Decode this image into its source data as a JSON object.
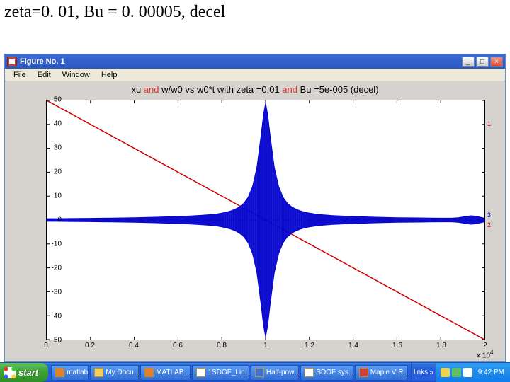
{
  "slide": {
    "caption": "zeta=0. 01, Bu = 0. 00005, decel"
  },
  "figureWindow": {
    "title": "Figure No. 1",
    "menus": [
      "File",
      "Edit",
      "Window",
      "Help"
    ],
    "winButtons": {
      "min": "_",
      "max": "□",
      "close": "×"
    }
  },
  "chart": {
    "type": "line",
    "title_prefix": "xu ",
    "title_mid1": "and",
    "title_mid2": " w/w0 vs w0*t with zeta =0.01 ",
    "title_mid3": "and",
    "title_end": " Bu =5e-005 (decel)",
    "title_fontsize": 13,
    "background_color": "#ffffff",
    "panel_color": "#d6d3ce",
    "axis_color": "#000000",
    "xlim": [
      0,
      2.0
    ],
    "ylim": [
      -50,
      50
    ],
    "xticks": [
      0,
      0.2,
      0.4,
      0.6,
      0.8,
      1.0,
      1.2,
      1.4,
      1.6,
      1.8,
      2.0
    ],
    "yticks": [
      -50,
      -40,
      -30,
      -20,
      -10,
      0,
      10,
      20,
      30,
      40,
      50
    ],
    "x_exponent_label": "x 10",
    "x_exponent_sup": "4",
    "series": [
      {
        "name": "line1",
        "label": "1",
        "color": "#d00000",
        "linewidth": 1.5,
        "style": "solid",
        "points": [
          [
            0,
            50
          ],
          [
            2.0,
            -50
          ]
        ]
      },
      {
        "name": "line2",
        "label": "2",
        "color": "#d00000",
        "linewidth": 1,
        "style": "dashed",
        "points": [
          [
            0,
            0
          ],
          [
            2.0,
            0
          ]
        ]
      },
      {
        "name": "line3",
        "label": "3",
        "color": "#0000cc",
        "linewidth": 1,
        "style": "solid",
        "envelope": [
          [
            0.0,
            0.6
          ],
          [
            0.05,
            0.6
          ],
          [
            0.1,
            0.65
          ],
          [
            0.15,
            0.7
          ],
          [
            0.2,
            0.75
          ],
          [
            0.25,
            0.8
          ],
          [
            0.3,
            0.85
          ],
          [
            0.35,
            0.9
          ],
          [
            0.4,
            1.0
          ],
          [
            0.45,
            1.1
          ],
          [
            0.5,
            1.2
          ],
          [
            0.55,
            1.35
          ],
          [
            0.6,
            1.5
          ],
          [
            0.65,
            1.7
          ],
          [
            0.7,
            1.95
          ],
          [
            0.75,
            2.3
          ],
          [
            0.78,
            2.6
          ],
          [
            0.8,
            2.9
          ],
          [
            0.82,
            3.3
          ],
          [
            0.84,
            3.8
          ],
          [
            0.86,
            4.5
          ],
          [
            0.88,
            5.5
          ],
          [
            0.9,
            7.0
          ],
          [
            0.92,
            9.5
          ],
          [
            0.94,
            14.0
          ],
          [
            0.96,
            22.0
          ],
          [
            0.98,
            36.0
          ],
          [
            0.99,
            44.0
          ],
          [
            1.0,
            49.0
          ],
          [
            1.01,
            44.0
          ],
          [
            1.02,
            36.0
          ],
          [
            1.04,
            22.0
          ],
          [
            1.06,
            14.0
          ],
          [
            1.08,
            9.5
          ],
          [
            1.1,
            7.0
          ],
          [
            1.12,
            5.5
          ],
          [
            1.14,
            4.5
          ],
          [
            1.16,
            3.8
          ],
          [
            1.18,
            3.3
          ],
          [
            1.2,
            2.9
          ],
          [
            1.23,
            2.5
          ],
          [
            1.26,
            2.2
          ],
          [
            1.3,
            1.9
          ],
          [
            1.35,
            1.7
          ],
          [
            1.4,
            1.5
          ],
          [
            1.45,
            1.35
          ],
          [
            1.5,
            1.2
          ],
          [
            1.55,
            1.1
          ],
          [
            1.6,
            1.0
          ],
          [
            1.65,
            0.95
          ],
          [
            1.7,
            0.9
          ],
          [
            1.75,
            0.85
          ],
          [
            1.8,
            0.82
          ],
          [
            1.85,
            0.8
          ],
          [
            1.88,
            1.0
          ],
          [
            1.9,
            1.3
          ],
          [
            1.92,
            1.6
          ],
          [
            1.94,
            1.8
          ],
          [
            1.96,
            1.6
          ],
          [
            1.98,
            1.2
          ],
          [
            2.0,
            0.8
          ]
        ]
      }
    ],
    "series_label_positions": {
      "1": {
        "x": 2.01,
        "y": 40,
        "color": "#d00000"
      },
      "2": {
        "x": 2.01,
        "y": -2,
        "color": "#d00000"
      },
      "3": {
        "x": 2.01,
        "y": 2,
        "color": "#0000cc"
      }
    }
  },
  "taskbar": {
    "start": "start",
    "buttons": [
      {
        "label": "matlab",
        "icon_color": "#e08030"
      },
      {
        "label": "My Docu...",
        "icon_color": "#f5d060"
      },
      {
        "label": "MATLAB ...",
        "icon_color": "#e08030"
      },
      {
        "label": "1SDOF_Lin...",
        "icon_color": "#ffffff"
      },
      {
        "label": "Half-pow...",
        "icon_color": "#4070d0"
      },
      {
        "label": "SDOF sys...",
        "icon_color": "#ffffff"
      },
      {
        "label": "Maple V R...",
        "icon_color": "#d04040"
      }
    ],
    "links_label": "links",
    "tray_icons": [
      {
        "color": "#f0d050"
      },
      {
        "color": "#60c060"
      },
      {
        "color": "#ffffff"
      }
    ],
    "clock": "9:42 PM"
  }
}
